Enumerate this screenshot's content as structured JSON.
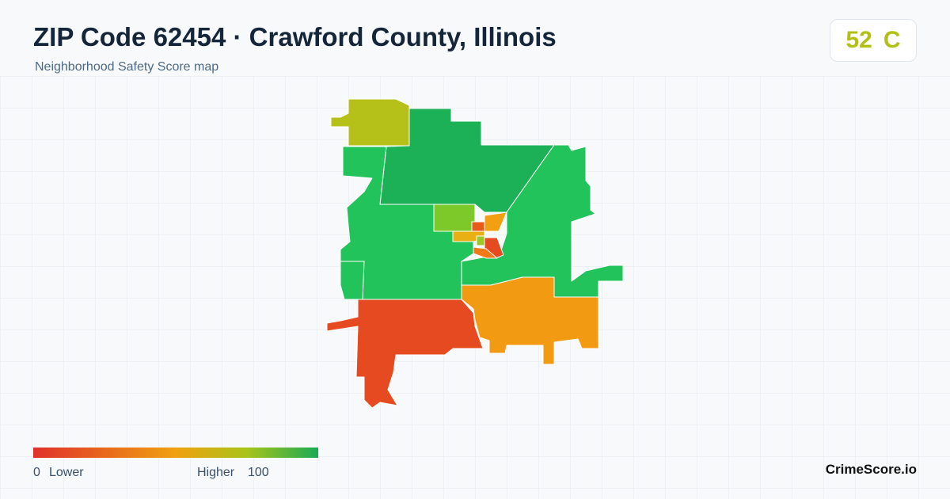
{
  "header": {
    "title": "ZIP Code 62454 · Crawford County, Illinois",
    "subtitle": "Neighborhood Safety Score map"
  },
  "score": {
    "value": 52,
    "grade": "C"
  },
  "legend": {
    "min": 0,
    "min_label": "Lower",
    "max_label": "Higher",
    "max": 100
  },
  "brand": "CrimeScore.io"
}
